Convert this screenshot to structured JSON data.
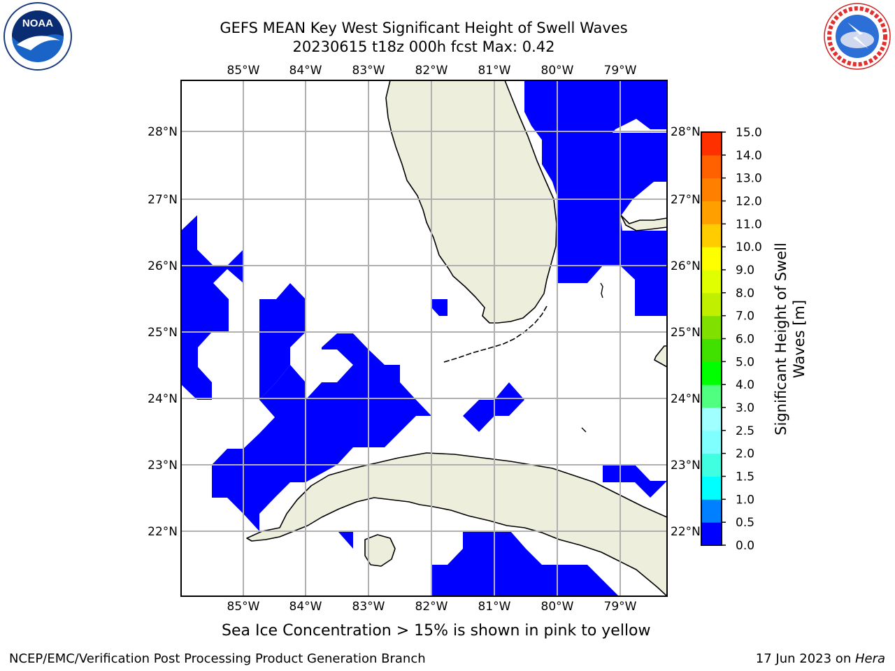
{
  "header": {
    "title_line1": "GEFS MEAN Key West Significant Height of Swell Waves",
    "title_line2": "20230615 t18z 000h fcst   Max: 0.42"
  },
  "map": {
    "lon_ticks": [
      "85°W",
      "84°W",
      "83°W",
      "82°W",
      "81°W",
      "80°W",
      "79°W"
    ],
    "lat_ticks": [
      "28°N",
      "27°N",
      "26°N",
      "25°N",
      "24°N",
      "23°N",
      "22°N"
    ],
    "land_color": "#eeeedd",
    "wave_color": "#0000ff",
    "grid_color": "#b0b0b0"
  },
  "colorbar": {
    "label": "Significant Height of Swell Waves [m]",
    "ticks": [
      "0.0",
      "0.5",
      "1.0",
      "1.5",
      "2.0",
      "2.5",
      "3.0",
      "4.0",
      "5.0",
      "6.0",
      "7.0",
      "8.0",
      "9.0",
      "10.0",
      "11.0",
      "12.0",
      "13.0",
      "14.0",
      "15.0"
    ],
    "colors": [
      "#0000ff",
      "#0080ff",
      "#00ffff",
      "#40ffe0",
      "#80ffff",
      "#a0ffff",
      "#50ff80",
      "#00ff00",
      "#40e000",
      "#80e000",
      "#c0f000",
      "#e0ff00",
      "#ffff00",
      "#ffcc00",
      "#ffa000",
      "#ff8000",
      "#ff6000",
      "#ff3000",
      "#ff0000"
    ]
  },
  "caption": "Sea Ice Concentration > 15% is shown in pink to yellow",
  "footer": {
    "left": "NCEP/EMC/Verification Post Processing Product Generation Branch",
    "right_date": "17 Jun 2023 on ",
    "right_host": "Hera"
  },
  "logos": {
    "noaa": "NOAA",
    "nws": "NATIONAL WEATHER SERVICE"
  }
}
